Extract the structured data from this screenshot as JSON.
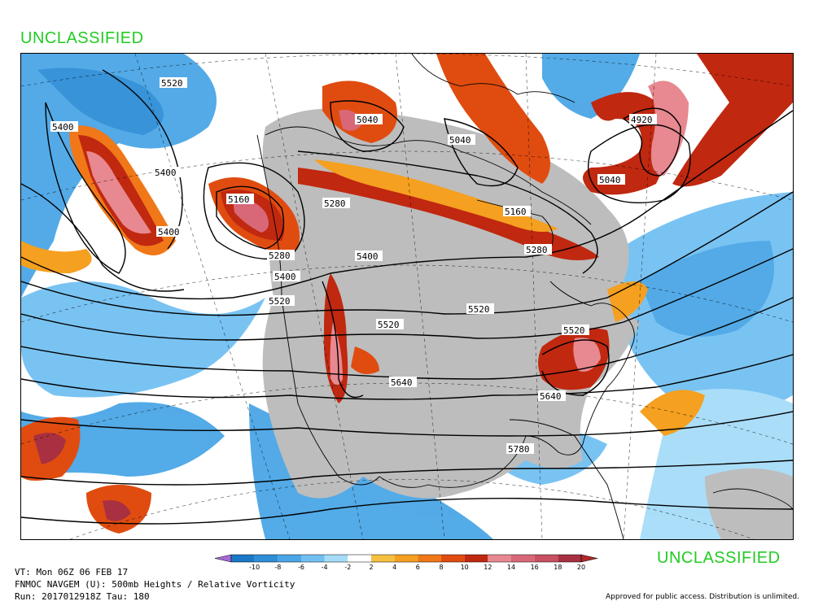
{
  "classification": {
    "top": "UNCLASSIFIED",
    "bottom": "UNCLASSIFIED",
    "color": "#22cc22"
  },
  "map": {
    "field_shaded": "Relative Vorticity",
    "field_contoured": "500mb Heights",
    "contour_labels": [
      "5520",
      "5400",
      "5400",
      "5400",
      "5160",
      "5280",
      "5040",
      "5040",
      "5040",
      "4920",
      "5280",
      "5400",
      "5280",
      "5400",
      "5160",
      "5520",
      "5520",
      "5520",
      "5520",
      "5640",
      "5640",
      "5780"
    ]
  },
  "legend": {
    "ticks": [
      "-10",
      "-8",
      "-6",
      "-4",
      "-2",
      "2",
      "4",
      "6",
      "8",
      "10",
      "12",
      "14",
      "16",
      "18",
      "20"
    ],
    "colors": [
      "#a66ad6",
      "#1a78c8",
      "#2e8ed6",
      "#4aa6e6",
      "#72c0f2",
      "#a6dcf8",
      "#ffffff",
      "#f5c040",
      "#f5a020",
      "#f07818",
      "#e04c10",
      "#c02810",
      "#e88890",
      "#d86878",
      "#c85060",
      "#a83040",
      "#b02828"
    ]
  },
  "info": {
    "vt": "VT: Mon 06Z 06 FEB 17",
    "model": "FNMOC NAVGEM (U): 500mb Heights / Relative Vorticity",
    "run": "Run: 2017012918Z Tau: 180"
  },
  "approval": "Approved for public access. Distribution is unlimited."
}
